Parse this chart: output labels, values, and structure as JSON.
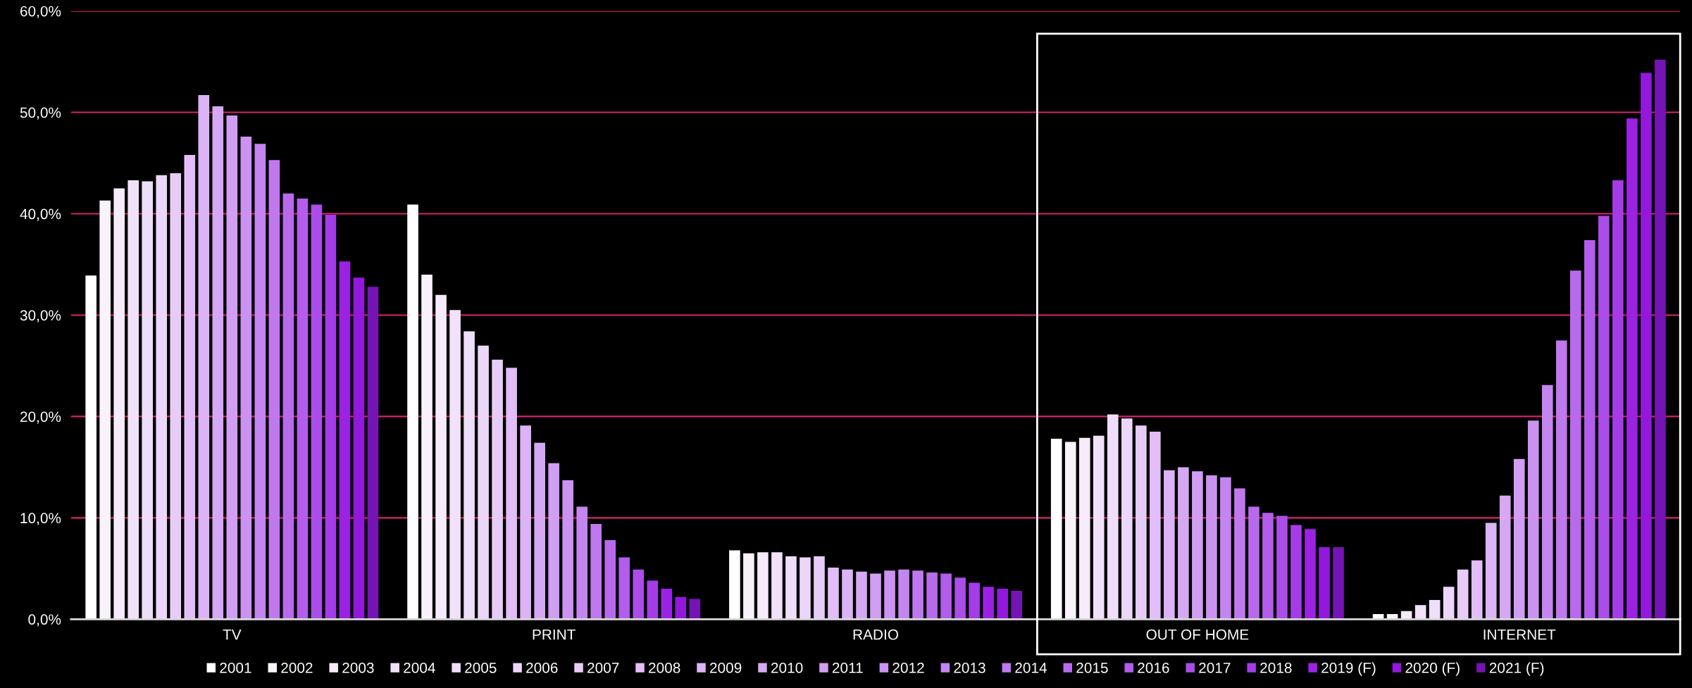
{
  "chart_data": {
    "type": "bar",
    "categories": [
      "TV",
      "PRINT",
      "RADIO",
      "OUT OF HOME",
      "INTERNET"
    ],
    "series": [
      {
        "name": "2001",
        "color": "#ffffff",
        "values": [
          33.9,
          40.9,
          6.8,
          17.8,
          0.5
        ]
      },
      {
        "name": "2002",
        "color": "#f9f2fa",
        "values": [
          41.3,
          34.0,
          6.5,
          17.5,
          0.5
        ]
      },
      {
        "name": "2003",
        "color": "#f5ebfa",
        "values": [
          42.5,
          32.0,
          6.6,
          17.9,
          0.8
        ]
      },
      {
        "name": "2004",
        "color": "#f1e2fa",
        "values": [
          43.3,
          30.5,
          6.6,
          18.1,
          1.4
        ]
      },
      {
        "name": "2005",
        "color": "#efdefa",
        "values": [
          43.2,
          28.4,
          6.2,
          20.2,
          1.9
        ]
      },
      {
        "name": "2006",
        "color": "#ecd6fa",
        "values": [
          43.8,
          27.0,
          6.1,
          19.8,
          3.2
        ]
      },
      {
        "name": "2007",
        "color": "#e8ccf8",
        "values": [
          44.0,
          25.6,
          6.2,
          19.1,
          4.9
        ]
      },
      {
        "name": "2008",
        "color": "#e2bdf7",
        "values": [
          45.8,
          24.8,
          5.1,
          18.5,
          5.8
        ]
      },
      {
        "name": "2009",
        "color": "#dcb3f6",
        "values": [
          51.7,
          19.1,
          4.9,
          14.7,
          9.5
        ]
      },
      {
        "name": "2010",
        "color": "#d6a8f4",
        "values": [
          50.6,
          17.4,
          4.7,
          15.0,
          12.2
        ]
      },
      {
        "name": "2011",
        "color": "#d19ef3",
        "values": [
          49.7,
          15.4,
          4.5,
          14.6,
          15.8
        ]
      },
      {
        "name": "2012",
        "color": "#cb92f2",
        "values": [
          47.6,
          13.7,
          4.8,
          14.2,
          19.6
        ]
      },
      {
        "name": "2013",
        "color": "#c585f0",
        "values": [
          46.9,
          11.1,
          4.9,
          14.0,
          23.1
        ]
      },
      {
        "name": "2014",
        "color": "#bf78ee",
        "values": [
          45.3,
          9.4,
          4.8,
          12.9,
          27.5
        ]
      },
      {
        "name": "2015",
        "color": "#b86aec",
        "values": [
          42.0,
          7.8,
          4.6,
          11.1,
          34.4
        ]
      },
      {
        "name": "2016",
        "color": "#b25deb",
        "values": [
          41.5,
          6.1,
          4.5,
          10.5,
          37.4
        ]
      },
      {
        "name": "2017",
        "color": "#ab4de8",
        "values": [
          40.9,
          4.9,
          4.1,
          10.2,
          39.8
        ]
      },
      {
        "name": "2018",
        "color": "#a43ce7",
        "values": [
          39.9,
          3.8,
          3.6,
          9.3,
          43.3
        ]
      },
      {
        "name": "2019 (F)",
        "color": "#9b22e3",
        "values": [
          35.3,
          3.0,
          3.2,
          8.9,
          49.4
        ]
      },
      {
        "name": "2020 (F)",
        "color": "#9218dc",
        "values": [
          33.7,
          2.2,
          3.0,
          7.1,
          53.9
        ]
      },
      {
        "name": "2021 (F)",
        "color": "#7514b4",
        "values": [
          32.8,
          2.0,
          2.8,
          7.1,
          55.2
        ]
      }
    ],
    "ylim": [
      0,
      60
    ],
    "yticks": [
      {
        "value": 0,
        "label": "0,0%"
      },
      {
        "value": 10,
        "label": "10,0%"
      },
      {
        "value": 20,
        "label": "20,0%"
      },
      {
        "value": 30,
        "label": "30,0%"
      },
      {
        "value": 40,
        "label": "40,0%"
      },
      {
        "value": 50,
        "label": "50,0%"
      },
      {
        "value": 60,
        "label": "60,0%"
      }
    ],
    "grid": "y",
    "legend": "bottom"
  }
}
